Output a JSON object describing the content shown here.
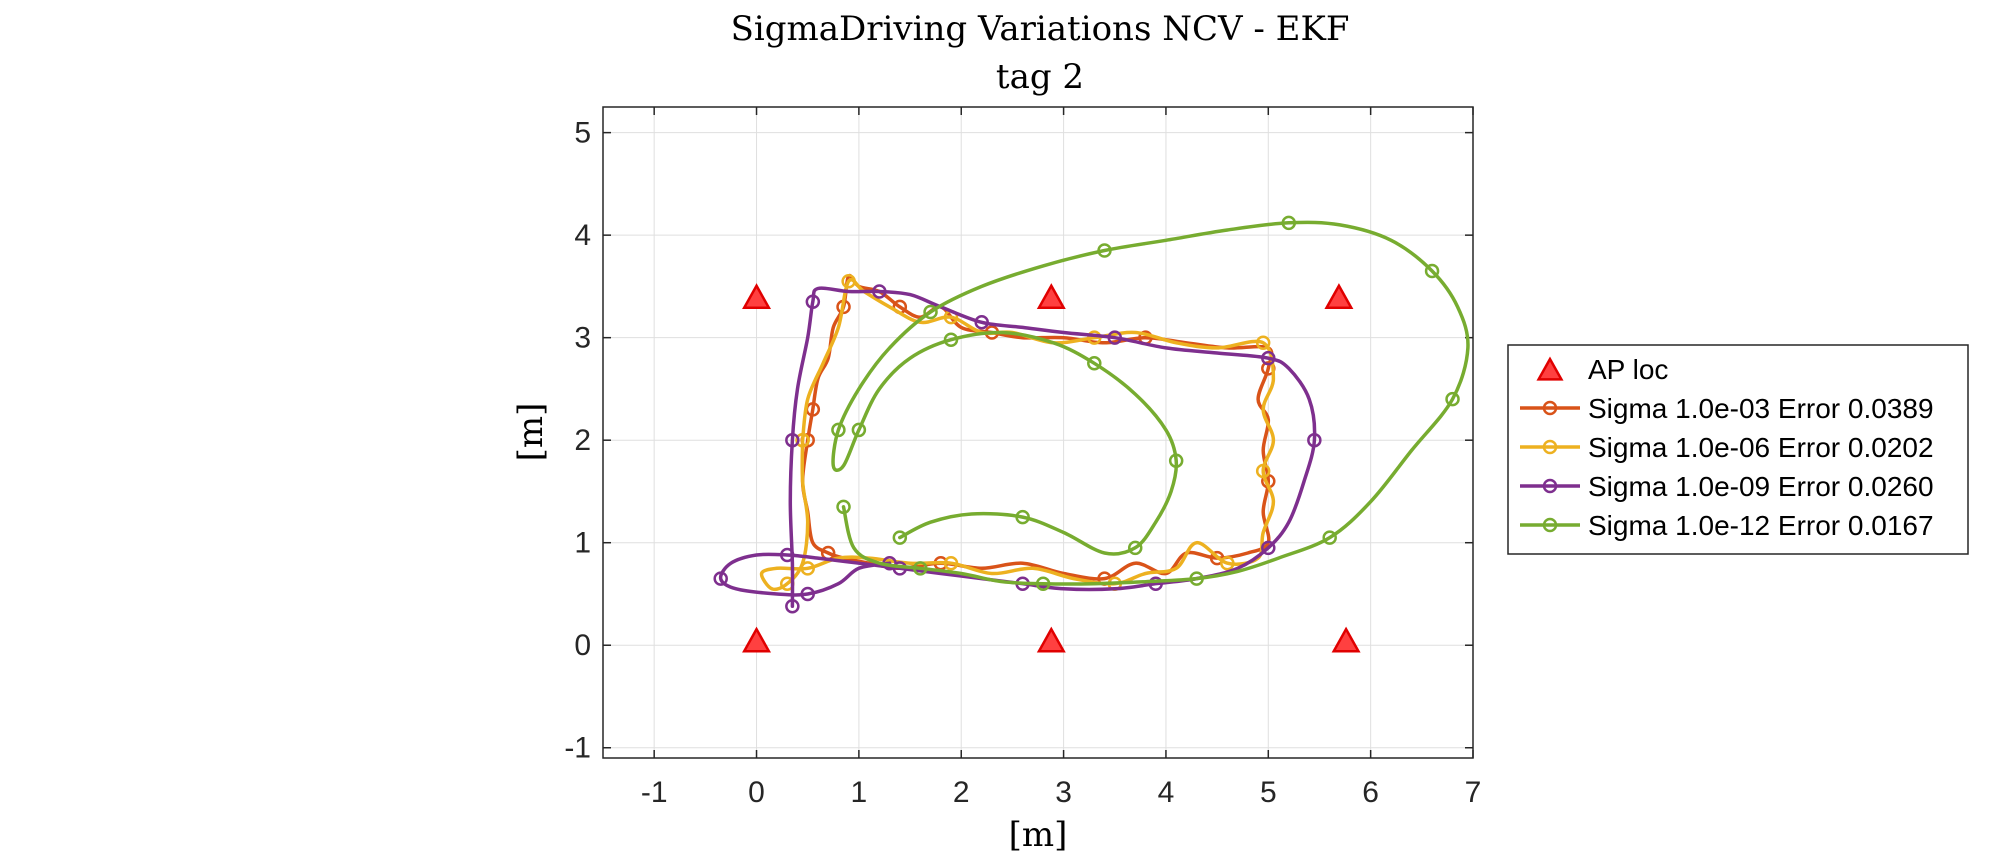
{
  "chart_data": {
    "type": "line",
    "title": "SigmaDriving Variations NCV - EKF",
    "subtitle": "tag 2",
    "xlabel": "[m]",
    "ylabel": "[m]",
    "xlim": [
      -1.5,
      7
    ],
    "ylim": [
      -1.1,
      5.25
    ],
    "xticks": [
      -1,
      0,
      1,
      2,
      3,
      4,
      5,
      6,
      7
    ],
    "yticks": [
      -1,
      0,
      1,
      2,
      3,
      4,
      5
    ],
    "grid": true,
    "legend_position": "outside-right",
    "markers": {
      "name": "AP loc",
      "color": "#ff0000",
      "points": [
        [
          0,
          3.38
        ],
        [
          2.88,
          3.38
        ],
        [
          5.69,
          3.38
        ],
        [
          0,
          0.03
        ],
        [
          2.88,
          0.03
        ],
        [
          5.76,
          0.03
        ]
      ]
    },
    "series": [
      {
        "name": "Sigma 1.0e-03 Error 0.0389",
        "color": "#d95319",
        "points": [
          [
            0.55,
            2.3
          ],
          [
            0.6,
            2.6
          ],
          [
            0.7,
            2.8
          ],
          [
            0.75,
            3.1
          ],
          [
            0.85,
            3.3
          ],
          [
            0.9,
            3.6
          ],
          [
            1.0,
            3.5
          ],
          [
            1.2,
            3.45
          ],
          [
            1.4,
            3.3
          ],
          [
            1.6,
            3.2
          ],
          [
            1.8,
            3.3
          ],
          [
            2.0,
            3.1
          ],
          [
            2.3,
            3.05
          ],
          [
            2.6,
            3.0
          ],
          [
            3.0,
            3.0
          ],
          [
            3.4,
            2.95
          ],
          [
            3.8,
            3.0
          ],
          [
            4.2,
            2.95
          ],
          [
            4.6,
            2.9
          ],
          [
            5.0,
            2.9
          ],
          [
            5.0,
            2.7
          ],
          [
            4.9,
            2.4
          ],
          [
            5.0,
            2.2
          ],
          [
            4.95,
            1.9
          ],
          [
            5.0,
            1.6
          ],
          [
            4.95,
            1.3
          ],
          [
            5.0,
            1.0
          ],
          [
            4.8,
            0.9
          ],
          [
            4.5,
            0.85
          ],
          [
            4.2,
            0.9
          ],
          [
            4.0,
            0.7
          ],
          [
            3.7,
            0.8
          ],
          [
            3.4,
            0.65
          ],
          [
            3.0,
            0.7
          ],
          [
            2.6,
            0.8
          ],
          [
            2.2,
            0.75
          ],
          [
            1.8,
            0.8
          ],
          [
            1.4,
            0.75
          ],
          [
            1.1,
            0.8
          ],
          [
            0.85,
            0.85
          ],
          [
            0.7,
            0.9
          ],
          [
            0.55,
            1.0
          ],
          [
            0.5,
            1.3
          ],
          [
            0.45,
            1.6
          ],
          [
            0.5,
            2.0
          ],
          [
            0.55,
            2.3
          ]
        ],
        "mark_every": 4
      },
      {
        "name": "Sigma 1.0e-06 Error 0.0202",
        "color": "#edb120",
        "points": [
          [
            0.45,
            2.0
          ],
          [
            0.5,
            2.4
          ],
          [
            0.65,
            2.75
          ],
          [
            0.8,
            3.1
          ],
          [
            0.9,
            3.55
          ],
          [
            1.05,
            3.45
          ],
          [
            1.3,
            3.3
          ],
          [
            1.6,
            3.15
          ],
          [
            1.9,
            3.2
          ],
          [
            2.2,
            3.05
          ],
          [
            2.5,
            3.05
          ],
          [
            2.9,
            2.95
          ],
          [
            3.3,
            3.0
          ],
          [
            3.7,
            3.05
          ],
          [
            4.1,
            2.95
          ],
          [
            4.5,
            2.9
          ],
          [
            4.95,
            2.95
          ],
          [
            5.05,
            2.6
          ],
          [
            4.95,
            2.3
          ],
          [
            5.05,
            2.0
          ],
          [
            4.95,
            1.7
          ],
          [
            5.05,
            1.4
          ],
          [
            4.95,
            1.1
          ],
          [
            4.9,
            0.85
          ],
          [
            4.6,
            0.8
          ],
          [
            4.3,
            1.0
          ],
          [
            4.1,
            0.75
          ],
          [
            3.8,
            0.7
          ],
          [
            3.5,
            0.6
          ],
          [
            3.1,
            0.65
          ],
          [
            2.7,
            0.75
          ],
          [
            2.3,
            0.7
          ],
          [
            1.9,
            0.8
          ],
          [
            1.5,
            0.8
          ],
          [
            1.1,
            0.85
          ],
          [
            0.8,
            0.85
          ],
          [
            0.5,
            0.75
          ],
          [
            0.2,
            0.75
          ],
          [
            0.05,
            0.7
          ],
          [
            0.15,
            0.55
          ],
          [
            0.3,
            0.6
          ],
          [
            0.45,
            0.8
          ],
          [
            0.5,
            1.2
          ],
          [
            0.45,
            1.6
          ],
          [
            0.45,
            2.0
          ]
        ],
        "mark_every": 4
      },
      {
        "name": "Sigma 1.0e-09 Error 0.0260",
        "color": "#7e2f8e",
        "points": [
          [
            0.35,
            0.38
          ],
          [
            0.35,
            0.8
          ],
          [
            0.33,
            1.4
          ],
          [
            0.35,
            2.0
          ],
          [
            0.4,
            2.5
          ],
          [
            0.5,
            3.0
          ],
          [
            0.55,
            3.35
          ],
          [
            0.6,
            3.48
          ],
          [
            0.9,
            3.45
          ],
          [
            1.2,
            3.45
          ],
          [
            1.5,
            3.42
          ],
          [
            1.8,
            3.3
          ],
          [
            2.2,
            3.15
          ],
          [
            2.6,
            3.1
          ],
          [
            3.0,
            3.05
          ],
          [
            3.5,
            3.0
          ],
          [
            4.0,
            2.9
          ],
          [
            4.5,
            2.85
          ],
          [
            5.0,
            2.8
          ],
          [
            5.2,
            2.7
          ],
          [
            5.4,
            2.4
          ],
          [
            5.45,
            2.0
          ],
          [
            5.35,
            1.6
          ],
          [
            5.2,
            1.2
          ],
          [
            5.0,
            0.95
          ],
          [
            4.7,
            0.75
          ],
          [
            4.3,
            0.65
          ],
          [
            3.9,
            0.6
          ],
          [
            3.5,
            0.55
          ],
          [
            3.0,
            0.55
          ],
          [
            2.6,
            0.6
          ],
          [
            2.2,
            0.65
          ],
          [
            1.8,
            0.7
          ],
          [
            1.4,
            0.75
          ],
          [
            1.0,
            0.8
          ],
          [
            0.6,
            0.85
          ],
          [
            0.3,
            0.88
          ],
          [
            0.0,
            0.88
          ],
          [
            -0.25,
            0.8
          ],
          [
            -0.35,
            0.65
          ],
          [
            -0.2,
            0.55
          ],
          [
            0.2,
            0.5
          ],
          [
            0.5,
            0.5
          ],
          [
            0.8,
            0.6
          ],
          [
            1.0,
            0.75
          ],
          [
            1.3,
            0.8
          ]
        ],
        "mark_every": 3
      },
      {
        "name": "Sigma 1.0e-12 Error 0.0167",
        "color": "#77ac30",
        "points": [
          [
            0.85,
            1.35
          ],
          [
            0.95,
            0.95
          ],
          [
            1.2,
            0.8
          ],
          [
            1.6,
            0.75
          ],
          [
            2.0,
            0.7
          ],
          [
            2.4,
            0.62
          ],
          [
            2.8,
            0.6
          ],
          [
            3.3,
            0.6
          ],
          [
            3.8,
            0.62
          ],
          [
            4.3,
            0.65
          ],
          [
            4.7,
            0.72
          ],
          [
            5.1,
            0.85
          ],
          [
            5.6,
            1.05
          ],
          [
            6.0,
            1.4
          ],
          [
            6.4,
            1.9
          ],
          [
            6.8,
            2.4
          ],
          [
            6.95,
            2.9
          ],
          [
            6.85,
            3.3
          ],
          [
            6.6,
            3.65
          ],
          [
            6.2,
            3.95
          ],
          [
            5.7,
            4.1
          ],
          [
            5.2,
            4.12
          ],
          [
            4.6,
            4.05
          ],
          [
            4.0,
            3.95
          ],
          [
            3.4,
            3.85
          ],
          [
            2.8,
            3.7
          ],
          [
            2.2,
            3.5
          ],
          [
            1.7,
            3.25
          ],
          [
            1.3,
            2.9
          ],
          [
            1.0,
            2.5
          ],
          [
            0.8,
            2.1
          ],
          [
            0.75,
            1.75
          ],
          [
            0.85,
            1.75
          ],
          [
            1.0,
            2.1
          ],
          [
            1.2,
            2.5
          ],
          [
            1.5,
            2.8
          ],
          [
            1.9,
            2.98
          ],
          [
            2.4,
            3.05
          ],
          [
            2.9,
            2.95
          ],
          [
            3.3,
            2.75
          ],
          [
            3.7,
            2.45
          ],
          [
            4.0,
            2.1
          ],
          [
            4.1,
            1.8
          ],
          [
            4.05,
            1.5
          ],
          [
            3.9,
            1.2
          ],
          [
            3.7,
            0.95
          ],
          [
            3.4,
            0.9
          ],
          [
            3.0,
            1.1
          ],
          [
            2.6,
            1.25
          ],
          [
            2.1,
            1.28
          ],
          [
            1.7,
            1.2
          ],
          [
            1.4,
            1.05
          ]
        ],
        "mark_every": 3
      }
    ]
  }
}
